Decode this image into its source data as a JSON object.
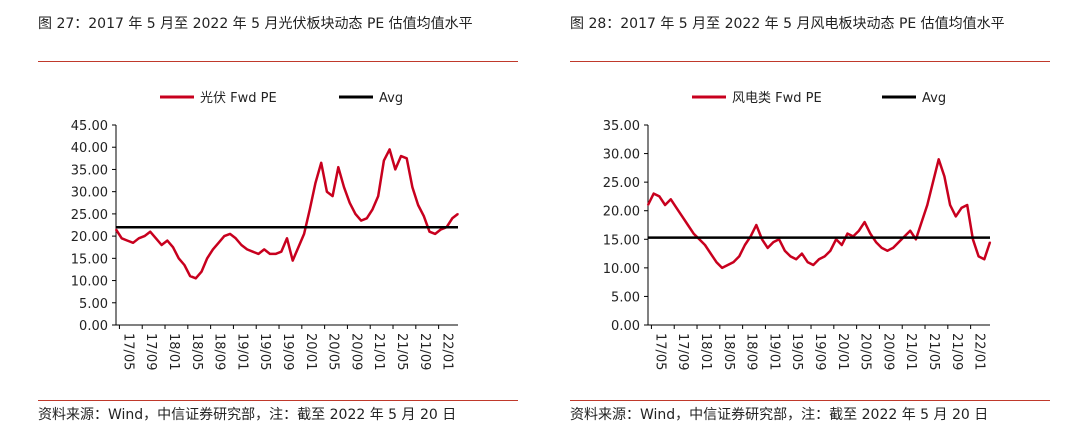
{
  "left": {
    "title": "图 27：2017 年 5 月至 2022 年 5 月光伏板块动态 PE 估值均值水平",
    "source": "资料来源：Wind，中信证券研究部，注：截至 2022 年 5 月 20 日",
    "chart_data": {
      "type": "line",
      "series": [
        {
          "name": "光伏 Fwd PE",
          "color": "#c8001e",
          "x": [
            0,
            1,
            2,
            3,
            4,
            5,
            6,
            7,
            8,
            9,
            10,
            11,
            12,
            13,
            14,
            15,
            16,
            17,
            18,
            19,
            20,
            21,
            22,
            23,
            24,
            25,
            26,
            27,
            28,
            29,
            30,
            31,
            32,
            33,
            34,
            35,
            36,
            37,
            38,
            39,
            40,
            41,
            42,
            43,
            44,
            45,
            46,
            47,
            48,
            49,
            50,
            51,
            52,
            53,
            54,
            55,
            56,
            57,
            58,
            59,
            60
          ],
          "values": [
            21.5,
            19.5,
            19.0,
            18.5,
            19.5,
            20.0,
            21.0,
            19.5,
            18.0,
            19.0,
            17.5,
            15.0,
            13.5,
            11.0,
            10.5,
            12.0,
            15.0,
            17.0,
            18.5,
            20.0,
            20.5,
            19.5,
            18.0,
            17.0,
            16.5,
            16.0,
            17.0,
            16.0,
            16.0,
            16.5,
            19.5,
            14.5,
            17.5,
            20.5,
            26.0,
            32.0,
            36.5,
            30.0,
            29.0,
            35.5,
            31.0,
            27.5,
            25.0,
            23.5,
            24.0,
            26.0,
            29.0,
            37.0,
            39.5,
            35.0,
            38.0,
            37.5,
            31.0,
            27.0,
            24.5,
            21.0,
            20.5,
            21.5,
            22.0,
            24.0,
            25.0
          ]
        },
        {
          "name": "Avg",
          "color": "#000000",
          "constant": 22.0
        }
      ],
      "x_tick_labels": [
        "17/05",
        "17/09",
        "18/01",
        "18/05",
        "18/09",
        "19/01",
        "19/05",
        "19/09",
        "20/01",
        "20/05",
        "20/09",
        "21/01",
        "21/05",
        "21/09",
        "22/01"
      ],
      "y_tick_labels": [
        "0.00",
        "5.00",
        "10.00",
        "15.00",
        "20.00",
        "25.00",
        "30.00",
        "35.00",
        "40.00",
        "45.00"
      ],
      "ylim": [
        0,
        45
      ],
      "legend": "top"
    }
  },
  "right": {
    "title": "图 28：2017 年 5 月至 2022 年 5 月风电板块动态 PE 估值均值水平",
    "source": "资料来源：Wind，中信证券研究部，注：截至 2022 年 5 月 20 日",
    "chart_data": {
      "type": "line",
      "series": [
        {
          "name": "风电类 Fwd PE",
          "color": "#c8001e",
          "x": [
            0,
            1,
            2,
            3,
            4,
            5,
            6,
            7,
            8,
            9,
            10,
            11,
            12,
            13,
            14,
            15,
            16,
            17,
            18,
            19,
            20,
            21,
            22,
            23,
            24,
            25,
            26,
            27,
            28,
            29,
            30,
            31,
            32,
            33,
            34,
            35,
            36,
            37,
            38,
            39,
            40,
            41,
            42,
            43,
            44,
            45,
            46,
            47,
            48,
            49,
            50,
            51,
            52,
            53,
            54,
            55,
            56,
            57,
            58,
            59,
            60
          ],
          "values": [
            21.0,
            23.0,
            22.5,
            21.0,
            22.0,
            20.5,
            19.0,
            17.5,
            16.0,
            15.0,
            14.0,
            12.5,
            11.0,
            10.0,
            10.5,
            11.0,
            12.0,
            14.0,
            15.5,
            17.5,
            15.0,
            13.5,
            14.5,
            15.0,
            13.0,
            12.0,
            11.5,
            12.5,
            11.0,
            10.5,
            11.5,
            12.0,
            13.0,
            15.0,
            14.0,
            16.0,
            15.5,
            16.5,
            18.0,
            16.0,
            14.5,
            13.5,
            13.0,
            13.5,
            14.5,
            15.5,
            16.5,
            15.0,
            18.0,
            21.0,
            25.0,
            29.0,
            26.0,
            21.0,
            19.0,
            20.5,
            21.0,
            15.0,
            12.0,
            11.5,
            14.5
          ]
        },
        {
          "name": "Avg",
          "color": "#000000",
          "constant": 15.3
        }
      ],
      "x_tick_labels": [
        "17/05",
        "17/09",
        "18/01",
        "18/05",
        "18/09",
        "19/01",
        "19/05",
        "19/09",
        "20/01",
        "20/05",
        "20/09",
        "21/01",
        "21/05",
        "21/09",
        "22/01"
      ],
      "y_tick_labels": [
        "0.00",
        "5.00",
        "10.00",
        "15.00",
        "20.00",
        "25.00",
        "30.00",
        "35.00"
      ],
      "ylim": [
        0,
        35
      ],
      "legend": "top"
    }
  }
}
